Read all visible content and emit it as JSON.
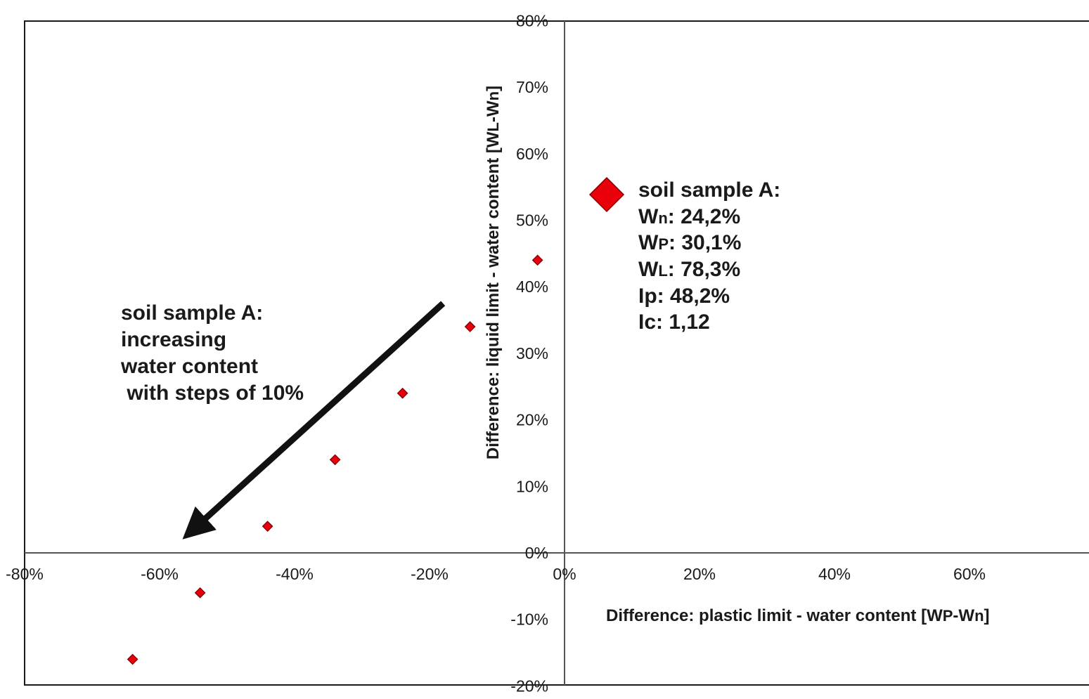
{
  "chart_data": {
    "type": "scatter",
    "x_axis": {
      "range": [
        -0.8,
        0.8
      ],
      "ticks": [
        -0.8,
        -0.6,
        -0.4,
        -0.2,
        0,
        0.2,
        0.4,
        0.6,
        0.8
      ],
      "tick_labels": [
        "-80%",
        "-60%",
        "-40%",
        "-20%",
        "0%",
        "20%",
        "40%",
        "60%",
        "80%"
      ],
      "label": {
        "pre": "Difference: plastic limit  - water content [W",
        "sub1": "P",
        "mid": "-W",
        "sub2": "n",
        "post": "]"
      }
    },
    "y_axis": {
      "range": [
        -0.2,
        0.8
      ],
      "ticks": [
        -0.2,
        -0.1,
        0,
        0.1,
        0.2,
        0.3,
        0.4,
        0.5,
        0.6,
        0.7,
        0.8
      ],
      "tick_labels": [
        "-20%",
        "-10%",
        "0%",
        "10%",
        "20%",
        "30%",
        "40%",
        "50%",
        "60%",
        "70%",
        "80%"
      ],
      "label": {
        "pre": "Difference: liquid limit  - water content [W",
        "sub1": "L",
        "mid": "-W",
        "sub2": "n",
        "post": "]"
      }
    },
    "grid": false,
    "series": [
      {
        "marker": "diamond",
        "color": "#e8000b",
        "points": [
          {
            "x": -0.04,
            "y": 0.44
          },
          {
            "x": -0.14,
            "y": 0.34
          },
          {
            "x": -0.24,
            "y": 0.24
          },
          {
            "x": -0.34,
            "y": 0.14
          },
          {
            "x": -0.44,
            "y": 0.04
          },
          {
            "x": -0.54,
            "y": -0.06
          },
          {
            "x": -0.64,
            "y": -0.16
          }
        ]
      }
    ],
    "arrow": {
      "from": {
        "x": -0.18,
        "y": 0.375
      },
      "to": {
        "x": -0.555,
        "y": 0.03
      }
    },
    "left_annotation": {
      "lines": [
        "soil sample A:",
        "increasing",
        "water content",
        " with steps of 10%"
      ]
    },
    "legend": {
      "title": "soil sample A:",
      "marker": "diamond",
      "color": "#e8000b",
      "items": [
        {
          "main": "W",
          "sub": "n",
          "value": ": 24,2%"
        },
        {
          "main": "W",
          "sub": "P",
          "value": ": 30,1%"
        },
        {
          "main": "W",
          "sub": "L",
          "value": ": 78,3%"
        },
        {
          "main": "Ip",
          "sub": "",
          "value": ": 48,2%"
        },
        {
          "main": "Ic",
          "sub": "",
          "value": ": 1,12"
        }
      ]
    }
  }
}
